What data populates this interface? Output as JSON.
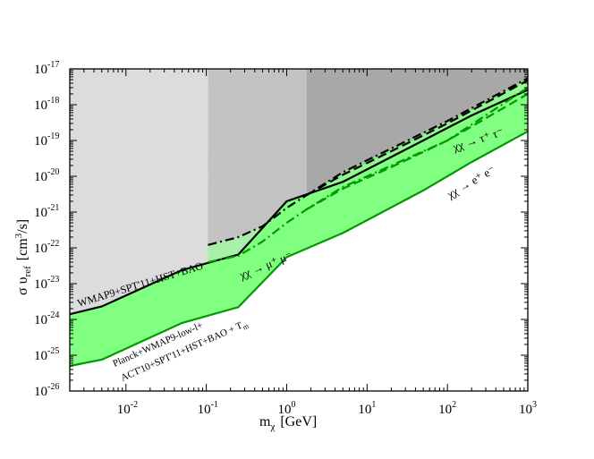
{
  "chart_data": {
    "type": "area",
    "x_scale": "log",
    "y_scale": "log",
    "xlim": [
      0.002,
      1000
    ],
    "ylim": [
      1e-26,
      1e-17
    ],
    "xlabel": {
      "main": "m",
      "sub": "χ",
      "unit": "[GeV]"
    },
    "ylabel": {
      "main": "σ υ",
      "sub": "ref",
      "unit_pre": "[cm",
      "unit_sup": "3",
      "unit_post": "/s]"
    },
    "x_ticks": [
      {
        "value": 0.01,
        "base": "10",
        "exp": "-2"
      },
      {
        "value": 0.1,
        "base": "10",
        "exp": "-1"
      },
      {
        "value": 1,
        "base": "10",
        "exp": "0"
      },
      {
        "value": 10,
        "base": "10",
        "exp": "1"
      },
      {
        "value": 100,
        "base": "10",
        "exp": "2"
      },
      {
        "value": 1000,
        "base": "10",
        "exp": "3"
      }
    ],
    "y_ticks": [
      {
        "value": 1e-26,
        "base": "10",
        "exp": "-26"
      },
      {
        "value": 1e-25,
        "base": "10",
        "exp": "-25"
      },
      {
        "value": 1e-24,
        "base": "10",
        "exp": "-24"
      },
      {
        "value": 1e-23,
        "base": "10",
        "exp": "-23"
      },
      {
        "value": 1e-22,
        "base": "10",
        "exp": "-22"
      },
      {
        "value": 1e-21,
        "base": "10",
        "exp": "-21"
      },
      {
        "value": 1e-20,
        "base": "10",
        "exp": "-20"
      },
      {
        "value": 1e-19,
        "base": "10",
        "exp": "-19"
      },
      {
        "value": 1e-18,
        "base": "10",
        "exp": "-18"
      },
      {
        "value": 1e-17,
        "base": "10",
        "exp": "-17"
      }
    ],
    "regions": [
      {
        "name": "e+e- region",
        "x_range": [
          0.002,
          0.105
        ],
        "color": "#dcdcdc"
      },
      {
        "name": "mu+mu- region",
        "x_range": [
          0.105,
          1.78
        ],
        "color": "#c2c2c2"
      },
      {
        "name": "tau+tau- region",
        "x_range": [
          1.78,
          1000
        ],
        "color": "#a8a8a8"
      }
    ],
    "series": [
      {
        "name": "WMAP9+SPT'11+HST+BAO",
        "channel": "e+e-",
        "style": "solid",
        "color": "#000000",
        "x": [
          0.002,
          0.005,
          0.05,
          0.25,
          1.0,
          5.0,
          50,
          200,
          1000
        ],
        "y": [
          1.4e-24,
          2.3e-24,
          2.4e-23,
          6.5e-23,
          2e-21,
          7e-21,
          1e-19,
          5e-19,
          2.6e-18
        ]
      },
      {
        "name": "WMAP9+SPT'11+HST+BAO",
        "channel": "mu+mu-",
        "style": "dash-dot",
        "color": "#000000",
        "x": [
          0.105,
          0.25,
          0.5,
          1.0,
          1.78,
          5.0,
          20,
          100,
          1000
        ],
        "y": [
          1.2e-22,
          2e-22,
          4e-22,
          1.3e-21,
          3e-21,
          1.3e-20,
          6e-20,
          3.5e-19,
          5.5e-18
        ]
      },
      {
        "name": "WMAP9+SPT'11+HST+BAO",
        "channel": "tau+tau-",
        "style": "dashed",
        "color": "#000000",
        "x": [
          1.78,
          5.0,
          20,
          100,
          1000
        ],
        "y": [
          3e-21,
          1.1e-20,
          5e-20,
          3e-19,
          4.8e-18
        ]
      },
      {
        "name": "Planck+WMAP9-low-l+ACT'10+SPT'11+HST+BAO+Tm",
        "channel": "e+e-",
        "style": "solid",
        "color": "#009900",
        "x": [
          0.002,
          0.005,
          0.05,
          0.25,
          1.0,
          5.0,
          50,
          200,
          1000
        ],
        "y": [
          5e-26,
          7.5e-26,
          8e-25,
          2.2e-24,
          5.5e-23,
          2.6e-22,
          4e-21,
          2.5e-20,
          1.8e-19
        ]
      },
      {
        "name": "Planck+WMAP9-low-l+ACT'10+SPT'11+HST+BAO+Tm",
        "channel": "mu+mu-",
        "style": "dash-dot",
        "color": "#009900",
        "x": [
          0.105,
          0.25,
          0.5,
          1.0,
          1.78,
          5.0,
          20,
          100,
          1000
        ],
        "y": [
          4e-23,
          6e-23,
          1.5e-22,
          5e-22,
          1.2e-21,
          5e-21,
          2e-20,
          1e-19,
          3e-18
        ]
      },
      {
        "name": "Planck+WMAP9-low-l+ACT'10+SPT'11+HST+BAO+Tm",
        "channel": "tau+tau-",
        "style": "dashed",
        "color": "#009900",
        "x": [
          1.78,
          5.0,
          20,
          100,
          1000
        ],
        "y": [
          1.2e-21,
          4.5e-21,
          1.8e-20,
          1e-19,
          2e-18
        ]
      }
    ],
    "annotations": [
      {
        "text": "WMAP9+SPT'11+HST+BAO",
        "color": "#000000"
      },
      {
        "text": "Planck+WMAP9-low-l+",
        "color": "#009900"
      },
      {
        "text": "ACT'10+SPT'11+HST+BAO + T",
        "sub": "m",
        "color": "#009900"
      },
      {
        "text": "χχ → μ⁺ μ⁻",
        "color": "#000000"
      },
      {
        "text": "χχ → τ⁺ τ⁻",
        "color": "#000000"
      },
      {
        "text": "χχ → e⁺ e⁻",
        "color": "#000000"
      }
    ],
    "colors": {
      "band_fill": "#80ff80",
      "band_line": "#009900",
      "limit_line": "#000000"
    }
  }
}
